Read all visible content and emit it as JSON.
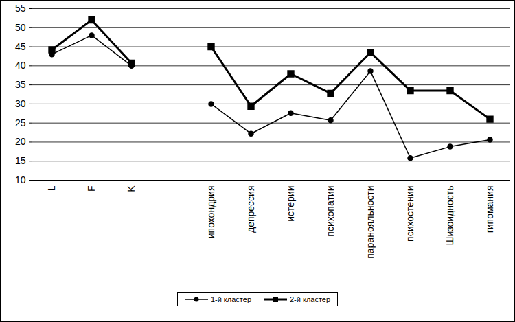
{
  "chart_data": {
    "type": "line",
    "categories": [
      "L",
      "F",
      "K",
      null,
      "ипохондрия",
      "депрессия",
      "истерии",
      "психопатии",
      "паранояльности",
      "психостении",
      "Шизоидность",
      "гипомания"
    ],
    "series": [
      {
        "name": "1-й кластер",
        "color": "#000000",
        "marker": "circle",
        "line_style": "solid",
        "values": [
          43,
          48,
          40,
          null,
          30,
          22.2,
          27.6,
          25.7,
          38.6,
          15.8,
          18.8,
          20.6
        ]
      },
      {
        "name": "2-й кластер",
        "color": "#000000",
        "marker": "square",
        "line_style": "solid",
        "values": [
          44.2,
          52,
          40.7,
          null,
          45,
          29.4,
          37.9,
          32.8,
          43.5,
          33.5,
          33.5,
          26
        ]
      }
    ],
    "ylim": [
      10,
      55
    ],
    "yticks": [
      10,
      15,
      20,
      25,
      30,
      35,
      40,
      45,
      50,
      55
    ],
    "grid": true,
    "legend": "bottom"
  }
}
